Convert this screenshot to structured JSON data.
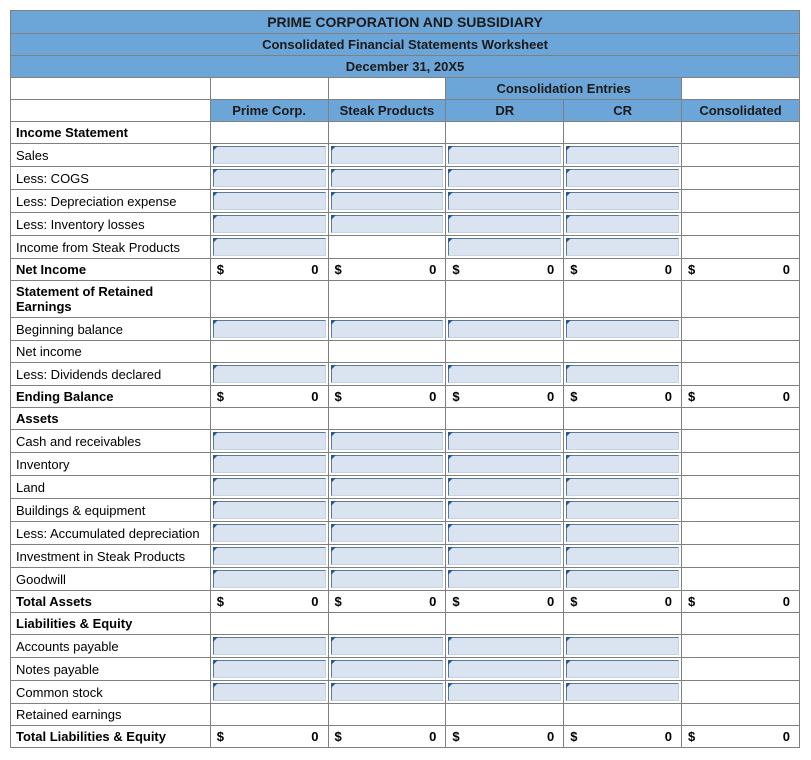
{
  "colors": {
    "header_bg": "#6ca6d9",
    "input_bg": "#d9e4f0",
    "border": "#808080",
    "input_corner": "#2a5a8a"
  },
  "titles": {
    "line1": "PRIME CORPORATION AND SUBSIDIARY",
    "line2": "Consolidated Financial Statements Worksheet",
    "line3": "December 31, 20X5"
  },
  "column_headers": {
    "consolidation_span": "Consolidation Entries",
    "prime": "Prime Corp.",
    "steak": "Steak Products",
    "dr": "DR",
    "cr": "CR",
    "consolidated": "Consolidated"
  },
  "sections": [
    {
      "header": "Income Statement",
      "rows": [
        {
          "label": "Sales",
          "inputs": [
            true,
            true,
            true,
            true,
            false
          ]
        },
        {
          "label": "Less: COGS",
          "inputs": [
            true,
            true,
            true,
            true,
            false
          ]
        },
        {
          "label": "Less: Depreciation expense",
          "inputs": [
            true,
            true,
            true,
            true,
            false
          ]
        },
        {
          "label": "Less: Inventory losses",
          "inputs": [
            true,
            true,
            true,
            true,
            false
          ]
        },
        {
          "label": "Income from Steak Products",
          "inputs": [
            true,
            false,
            true,
            true,
            false
          ]
        }
      ],
      "total": {
        "label": "Net Income",
        "values": [
          "0",
          "0",
          "0",
          "0",
          "0"
        ]
      }
    },
    {
      "header": "Statement of Retained Earnings",
      "rows": [
        {
          "label": "Beginning balance",
          "inputs": [
            true,
            true,
            true,
            true,
            false
          ]
        },
        {
          "label": "Net income",
          "inputs": [
            false,
            false,
            false,
            false,
            false
          ]
        },
        {
          "label": "Less: Dividends declared",
          "inputs": [
            true,
            true,
            true,
            true,
            false
          ]
        }
      ],
      "total": {
        "label": "Ending Balance",
        "values": [
          "0",
          "0",
          "0",
          "0",
          "0"
        ]
      }
    },
    {
      "header": "Assets",
      "rows": [
        {
          "label": "Cash and receivables",
          "inputs": [
            true,
            true,
            true,
            true,
            false
          ]
        },
        {
          "label": "Inventory",
          "inputs": [
            true,
            true,
            true,
            true,
            false
          ]
        },
        {
          "label": "Land",
          "inputs": [
            true,
            true,
            true,
            true,
            false
          ]
        },
        {
          "label": "Buildings & equipment",
          "inputs": [
            true,
            true,
            true,
            true,
            false
          ]
        },
        {
          "label": "Less: Accumulated depreciation",
          "inputs": [
            true,
            true,
            true,
            true,
            false
          ]
        },
        {
          "label": "Investment in Steak Products",
          "inputs": [
            true,
            true,
            true,
            true,
            false
          ]
        },
        {
          "label": "Goodwill",
          "inputs": [
            true,
            true,
            true,
            true,
            false
          ]
        }
      ],
      "total": {
        "label": "Total Assets",
        "values": [
          "0",
          "0",
          "0",
          "0",
          "0"
        ]
      }
    },
    {
      "header": "Liabilities & Equity",
      "rows": [
        {
          "label": "Accounts payable",
          "inputs": [
            true,
            true,
            true,
            true,
            false
          ]
        },
        {
          "label": "Notes payable",
          "inputs": [
            true,
            true,
            true,
            true,
            false
          ]
        },
        {
          "label": "Common stock",
          "inputs": [
            true,
            true,
            true,
            true,
            false
          ]
        },
        {
          "label": "Retained earnings",
          "inputs": [
            false,
            false,
            false,
            false,
            false
          ]
        }
      ],
      "total": {
        "label": "Total Liabilities & Equity",
        "values": [
          "0",
          "0",
          "0",
          "0",
          "0"
        ]
      }
    }
  ],
  "currency_symbol": "$"
}
